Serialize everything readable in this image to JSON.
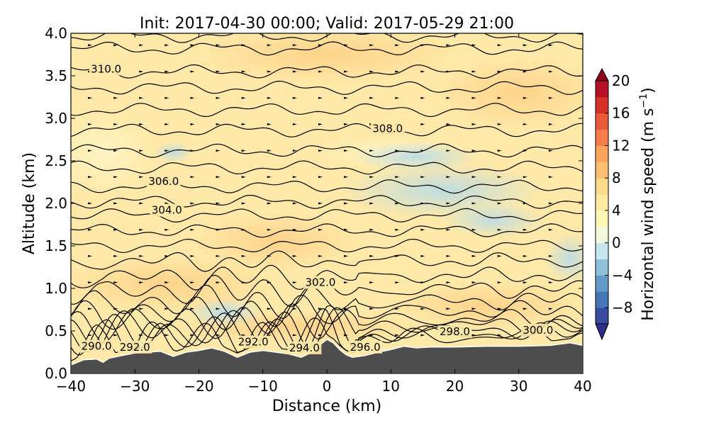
{
  "chart_data": {
    "type": "heatmap",
    "title": "Init: 2017-04-30 00:00; Valid: 2017-05-29 21:00",
    "xlabel": "Distance (km)",
    "ylabel": "Altitude (km)",
    "xlim": [
      -40,
      40
    ],
    "ylim": [
      0.0,
      4.0
    ],
    "x_ticks": [
      -40,
      -30,
      -20,
      -10,
      0,
      10,
      20,
      30,
      40
    ],
    "x_tick_labels": [
      "−40",
      "−30",
      "−20",
      "−10",
      "0",
      "10",
      "20",
      "30",
      "40"
    ],
    "y_ticks": [
      0.0,
      0.5,
      1.0,
      1.5,
      2.0,
      2.5,
      3.0,
      3.5,
      4.0
    ],
    "y_tick_labels": [
      "0.0",
      "0.5",
      "1.0",
      "1.5",
      "2.0",
      "2.5",
      "3.0",
      "3.5",
      "4.0"
    ],
    "colorbar": {
      "label_main": "Horizontal wind speed (m s",
      "label_sup": "−1",
      "label_end": ")",
      "range": [
        -10,
        20
      ],
      "step": 2,
      "ticks": [
        -8,
        -4,
        0,
        4,
        8,
        12,
        16,
        20
      ],
      "tick_labels": [
        "−8",
        "−4",
        "0",
        "4",
        "8",
        "12",
        "16",
        "20"
      ],
      "colormap": "RdYlBu_r"
    },
    "contour_labels": [
      {
        "text": "310.0",
        "x": -34.5,
        "y": 3.58
      },
      {
        "text": "308.0",
        "x": 9.5,
        "y": 2.88
      },
      {
        "text": "306.0",
        "x": -25.5,
        "y": 2.26
      },
      {
        "text": "304.0",
        "x": -25.0,
        "y": 1.92
      },
      {
        "text": "302.0",
        "x": -1.0,
        "y": 1.07
      },
      {
        "text": "298.0",
        "x": 20.0,
        "y": 0.49
      },
      {
        "text": "300.0",
        "x": 33.0,
        "y": 0.51
      },
      {
        "text": "290.0",
        "x": -36.0,
        "y": 0.32
      },
      {
        "text": "292.0",
        "x": -30.0,
        "y": 0.31
      },
      {
        "text": "292.0",
        "x": -11.5,
        "y": 0.37
      },
      {
        "text": "294.0",
        "x": -3.5,
        "y": 0.3
      },
      {
        "text": "296.0",
        "x": 6.0,
        "y": 0.31
      }
    ],
    "terrain": {
      "x": [
        -40,
        -38,
        -36,
        -35,
        -34,
        -32,
        -30,
        -28,
        -26,
        -24,
        -22,
        -20,
        -18,
        -16,
        -14,
        -12,
        -10,
        -8,
        -6,
        -4,
        -2,
        -1,
        0,
        1,
        2,
        3,
        4,
        6,
        8,
        10,
        12,
        14,
        16,
        18,
        20,
        25,
        30,
        35,
        38,
        40
      ],
      "y": [
        0.1,
        0.16,
        0.17,
        0.13,
        0.18,
        0.21,
        0.24,
        0.25,
        0.26,
        0.2,
        0.25,
        0.27,
        0.3,
        0.26,
        0.19,
        0.25,
        0.27,
        0.25,
        0.23,
        0.19,
        0.26,
        0.34,
        0.4,
        0.36,
        0.28,
        0.22,
        0.19,
        0.21,
        0.25,
        0.28,
        0.32,
        0.3,
        0.31,
        0.31,
        0.31,
        0.32,
        0.32,
        0.33,
        0.36,
        0.33
      ]
    }
  }
}
